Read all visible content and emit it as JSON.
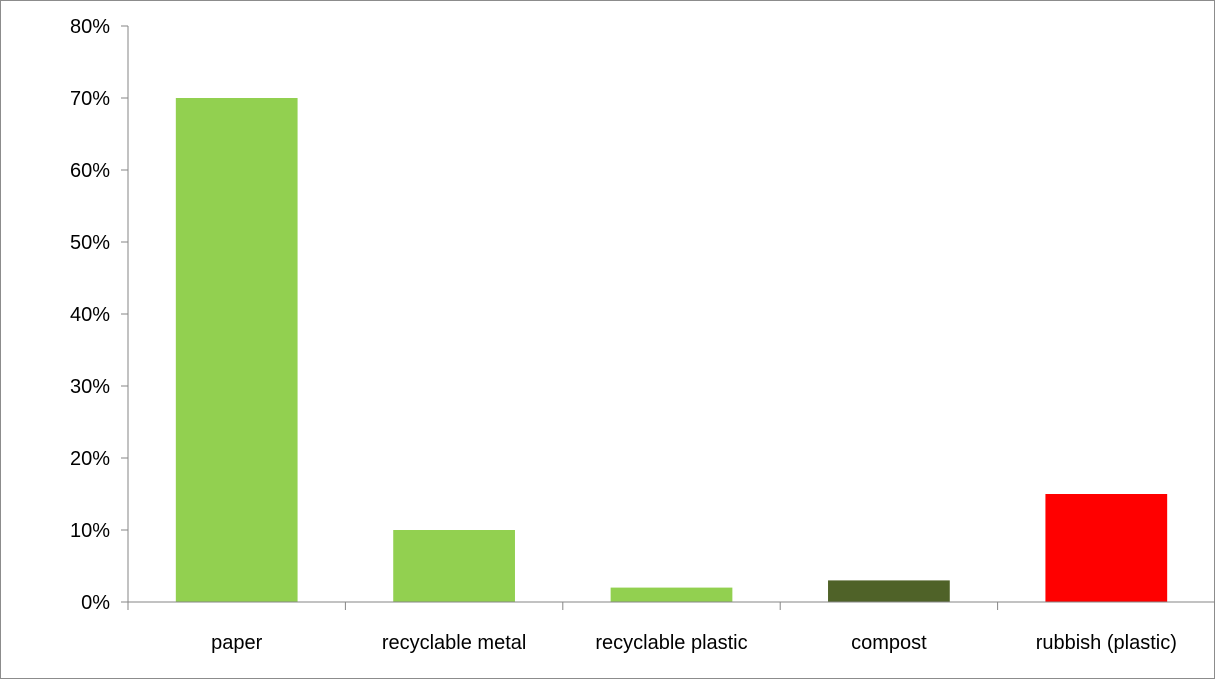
{
  "chart_data": {
    "type": "bar",
    "title": "",
    "xlabel": "",
    "ylabel": "",
    "categories": [
      "paper",
      "recyclable metal",
      "recyclable plastic",
      "compost",
      "rubbish (plastic)"
    ],
    "values": [
      0.7,
      0.1,
      0.02,
      0.03,
      0.15
    ],
    "colors": [
      "#92d050",
      "#92d050",
      "#92d050",
      "#4f6228",
      "#ff0000"
    ],
    "ylim": [
      0,
      0.8
    ],
    "yticks": [
      0,
      0.1,
      0.2,
      0.3,
      0.4,
      0.5,
      0.6,
      0.7,
      0.8
    ],
    "ytick_labels": [
      "0%",
      "10%",
      "20%",
      "30%",
      "40%",
      "50%",
      "60%",
      "70%",
      "80%"
    ],
    "grid": false,
    "legend": "none"
  }
}
